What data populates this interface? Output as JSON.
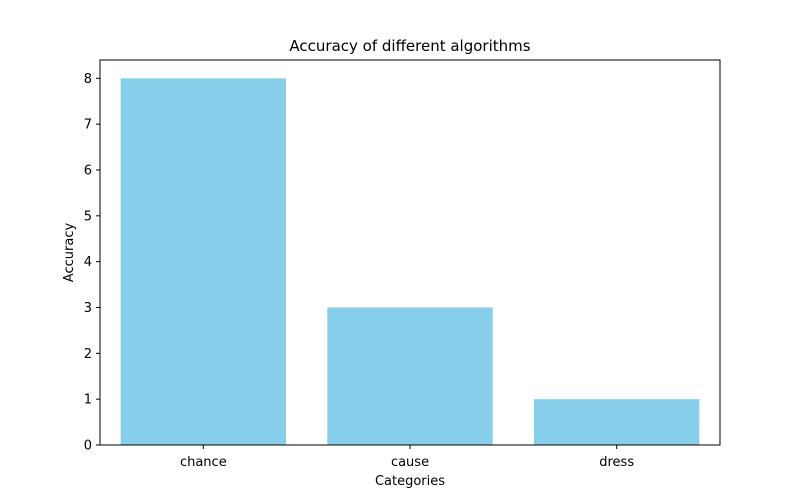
{
  "chart_data": {
    "type": "bar",
    "title": "Accuracy of different algorithms",
    "xlabel": "Categories",
    "ylabel": "Accuracy",
    "categories": [
      "chance",
      "cause",
      "dress"
    ],
    "values": [
      8,
      3,
      1
    ],
    "ylim": [
      0,
      8.4
    ],
    "yticks": [
      0,
      1,
      2,
      3,
      4,
      5,
      6,
      7,
      8
    ],
    "bar_color": "#87ceeb",
    "grid": false,
    "legend": "none"
  }
}
